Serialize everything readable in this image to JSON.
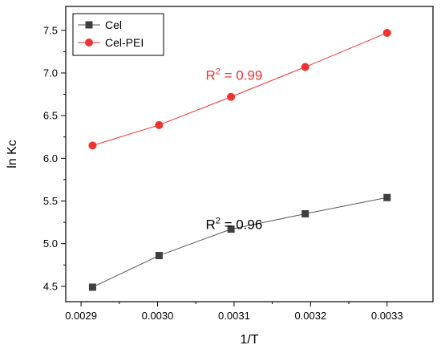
{
  "chart_data": {
    "type": "line",
    "xlabel": "1/T",
    "ylabel": "ln Kc",
    "xlim": [
      0.00288,
      0.00336
    ],
    "ylim": [
      4.32,
      7.78
    ],
    "x_ticks": [
      0.0029,
      0.003,
      0.0031,
      0.0032,
      0.0033
    ],
    "x_tick_labels": [
      "0.0029",
      "0.0030",
      "0.0031",
      "0.0032",
      "0.0033"
    ],
    "y_ticks": [
      4.5,
      5.0,
      5.5,
      6.0,
      6.5,
      7.0,
      7.5
    ],
    "y_tick_labels": [
      "4.5",
      "5.0",
      "5.5",
      "6.0",
      "6.5",
      "7.0",
      "7.5"
    ],
    "legend_position": "top-left",
    "series": [
      {
        "name": "Cel",
        "marker": "square",
        "color": "#3f3f3f",
        "line_color": "#555555",
        "x": [
          0.002915,
          0.003002,
          0.003096,
          0.003193,
          0.0033
        ],
        "y": [
          4.49,
          4.86,
          5.17,
          5.35,
          5.54
        ]
      },
      {
        "name": "Cel-PEI",
        "marker": "circle",
        "color": "#ee3333",
        "line_color": "#ee3333",
        "x": [
          0.002915,
          0.003002,
          0.003096,
          0.003193,
          0.0033
        ],
        "y": [
          6.15,
          6.39,
          6.72,
          7.07,
          7.47
        ]
      }
    ],
    "annotations": [
      {
        "base": "R",
        "sup": "2",
        "text": " = 0.99",
        "color": "#ee3333",
        "x": 0.0031,
        "y": 6.92
      },
      {
        "base": "R",
        "sup": "2",
        "text": " = 0.96",
        "color": "#000000",
        "x": 0.0031,
        "y": 5.17
      }
    ]
  }
}
